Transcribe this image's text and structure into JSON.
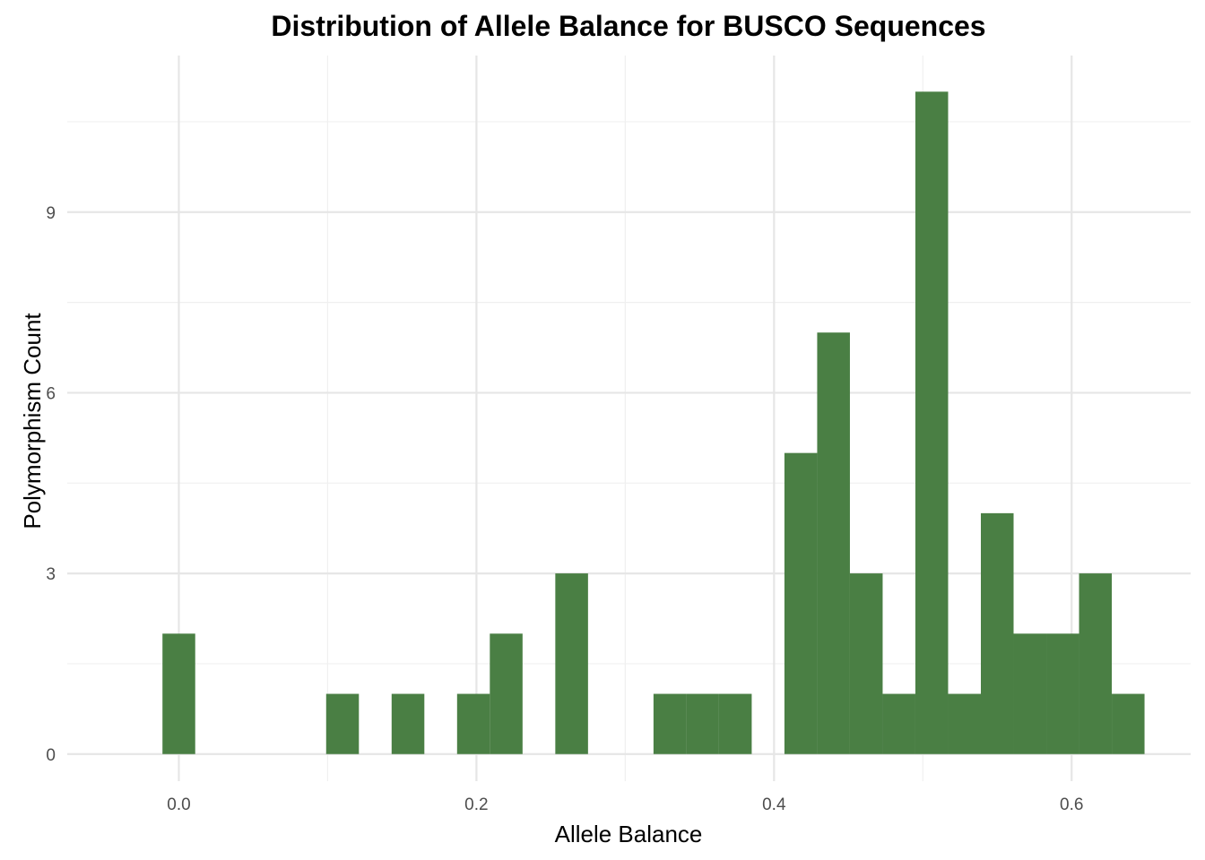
{
  "chart_data": {
    "type": "bar",
    "subtype": "histogram",
    "title": "Distribution of Allele Balance for BUSCO Sequences",
    "xlabel": "Allele Balance",
    "ylabel": "Polymorphism Count",
    "xlim": [
      -0.075,
      0.68
    ],
    "ylim": [
      -0.45,
      11.6
    ],
    "x_ticks": [
      0.0,
      0.2,
      0.4,
      0.6
    ],
    "x_tick_labels": [
      "0.0",
      "0.2",
      "0.4",
      "0.6"
    ],
    "y_ticks": [
      0,
      3,
      6,
      9
    ],
    "y_tick_labels": [
      "0",
      "3",
      "6",
      "9"
    ],
    "bin_width": 0.022,
    "bins": [
      {
        "x0": -0.011,
        "x1": 0.011,
        "count": 2
      },
      {
        "x0": 0.099,
        "x1": 0.121,
        "count": 1
      },
      {
        "x0": 0.143,
        "x1": 0.165,
        "count": 1
      },
      {
        "x0": 0.187,
        "x1": 0.209,
        "count": 1
      },
      {
        "x0": 0.209,
        "x1": 0.231,
        "count": 2
      },
      {
        "x0": 0.253,
        "x1": 0.275,
        "count": 3
      },
      {
        "x0": 0.319,
        "x1": 0.341,
        "count": 1
      },
      {
        "x0": 0.341,
        "x1": 0.363,
        "count": 1
      },
      {
        "x0": 0.363,
        "x1": 0.385,
        "count": 1
      },
      {
        "x0": 0.407,
        "x1": 0.429,
        "count": 5
      },
      {
        "x0": 0.429,
        "x1": 0.451,
        "count": 7
      },
      {
        "x0": 0.451,
        "x1": 0.473,
        "count": 3
      },
      {
        "x0": 0.473,
        "x1": 0.495,
        "count": 1
      },
      {
        "x0": 0.495,
        "x1": 0.517,
        "count": 11
      },
      {
        "x0": 0.517,
        "x1": 0.539,
        "count": 1
      },
      {
        "x0": 0.539,
        "x1": 0.561,
        "count": 4
      },
      {
        "x0": 0.561,
        "x1": 0.583,
        "count": 2
      },
      {
        "x0": 0.583,
        "x1": 0.605,
        "count": 2
      },
      {
        "x0": 0.605,
        "x1": 0.627,
        "count": 3
      },
      {
        "x0": 0.627,
        "x1": 0.649,
        "count": 1
      }
    ],
    "bar_color": "#4a7f44",
    "grid": true,
    "legend": "none"
  }
}
